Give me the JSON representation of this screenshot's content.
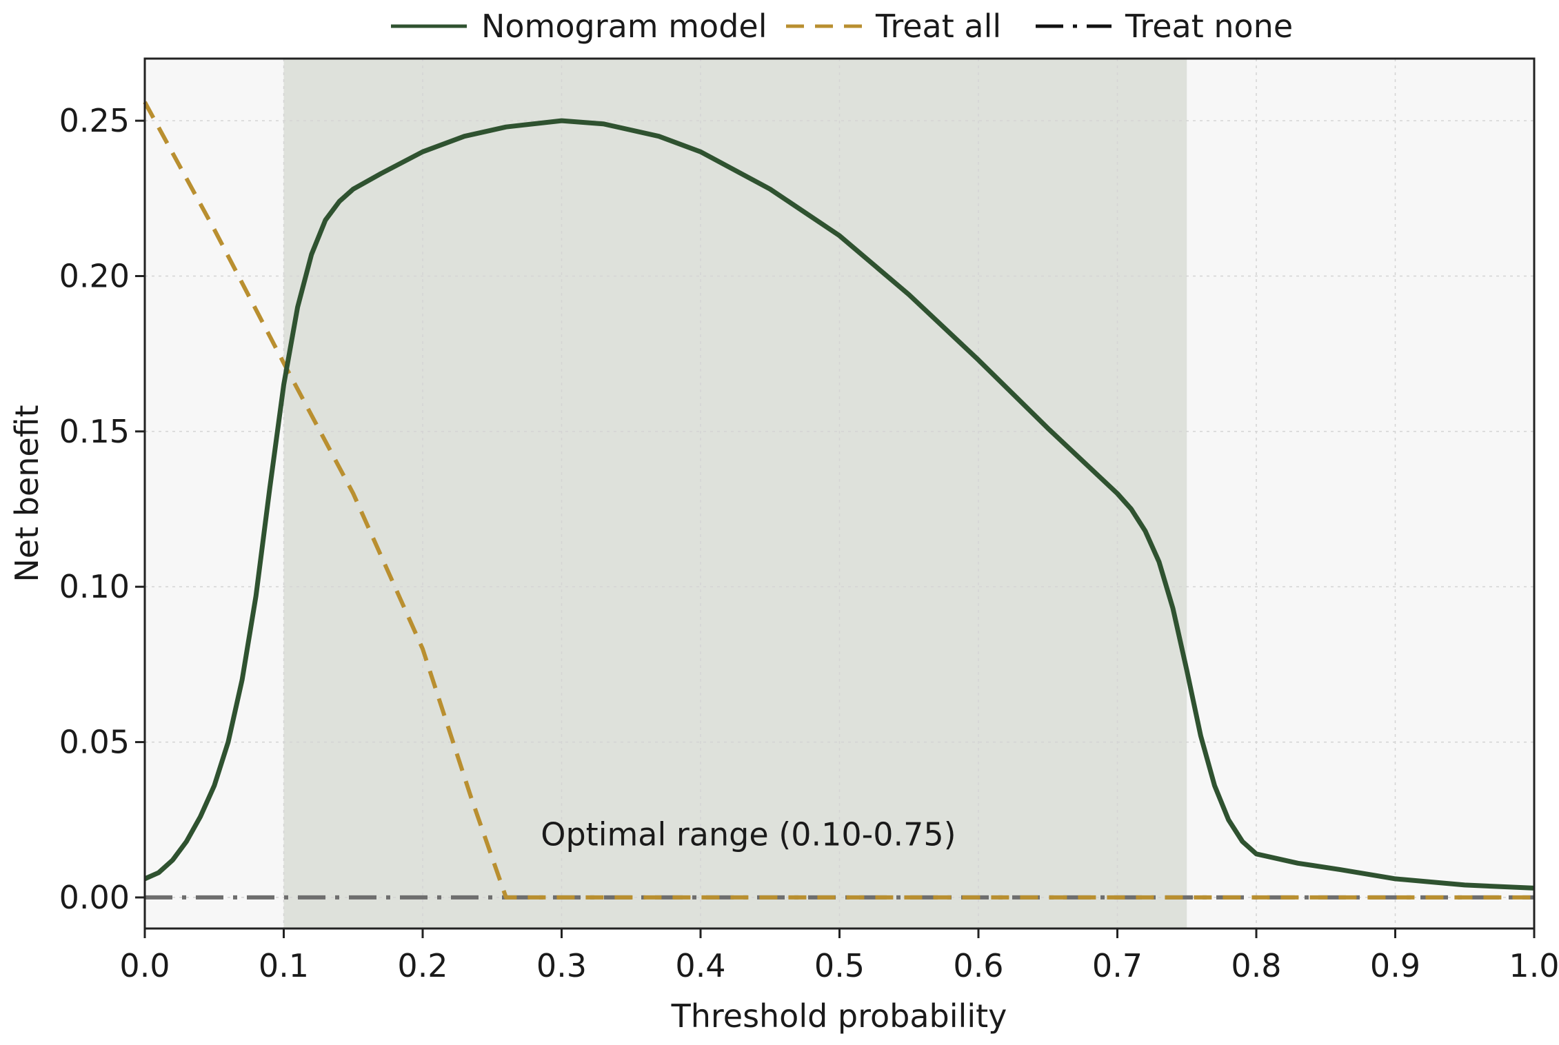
{
  "chart_data": {
    "type": "line",
    "xlabel": "Threshold probability",
    "ylabel": "Net benefit",
    "xlim": [
      0.0,
      1.0
    ],
    "ylim": [
      -0.01,
      0.27
    ],
    "xticks": [
      "0.0",
      "0.1",
      "0.2",
      "0.3",
      "0.4",
      "0.5",
      "0.6",
      "0.7",
      "0.8",
      "0.9",
      "1.0"
    ],
    "yticks": [
      "0.00",
      "0.05",
      "0.10",
      "0.15",
      "0.20",
      "0.25"
    ],
    "grid": true,
    "legend_position": "top-center",
    "shaded_region": {
      "x_start": 0.1,
      "x_end": 0.75,
      "label": "Optimal range (0.10-0.75)"
    },
    "series": [
      {
        "name": "Nomogram model",
        "color": "#2f5230",
        "style": "solid",
        "x": [
          0.0,
          0.01,
          0.02,
          0.03,
          0.04,
          0.05,
          0.06,
          0.07,
          0.08,
          0.09,
          0.1,
          0.11,
          0.12,
          0.13,
          0.14,
          0.15,
          0.17,
          0.2,
          0.23,
          0.26,
          0.3,
          0.33,
          0.37,
          0.4,
          0.45,
          0.5,
          0.55,
          0.6,
          0.65,
          0.7,
          0.71,
          0.72,
          0.73,
          0.74,
          0.75,
          0.76,
          0.77,
          0.78,
          0.79,
          0.8,
          0.83,
          0.86,
          0.9,
          0.95,
          1.0
        ],
        "y": [
          0.006,
          0.008,
          0.012,
          0.018,
          0.026,
          0.036,
          0.05,
          0.07,
          0.097,
          0.132,
          0.165,
          0.19,
          0.207,
          0.218,
          0.224,
          0.228,
          0.233,
          0.24,
          0.245,
          0.248,
          0.25,
          0.249,
          0.245,
          0.24,
          0.228,
          0.213,
          0.194,
          0.173,
          0.151,
          0.13,
          0.125,
          0.118,
          0.108,
          0.093,
          0.073,
          0.052,
          0.036,
          0.025,
          0.018,
          0.014,
          0.011,
          0.009,
          0.006,
          0.004,
          0.003
        ]
      },
      {
        "name": "Treat all",
        "color": "#b98f30",
        "style": "dashed",
        "x": [
          0.0,
          0.05,
          0.1,
          0.15,
          0.2,
          0.235,
          0.26,
          0.3,
          0.4,
          0.5,
          0.6,
          0.7,
          0.8,
          0.9,
          1.0
        ],
        "y": [
          0.256,
          0.215,
          0.172,
          0.13,
          0.08,
          0.032,
          0.0,
          0.0,
          0.0,
          0.0,
          0.0,
          0.0,
          0.0,
          0.0,
          0.0
        ]
      },
      {
        "name": "Treat none",
        "color": "#6e6e6e",
        "style": "dashdot",
        "x": [
          0.0,
          1.0
        ],
        "y": [
          0.0,
          0.0
        ]
      }
    ]
  }
}
